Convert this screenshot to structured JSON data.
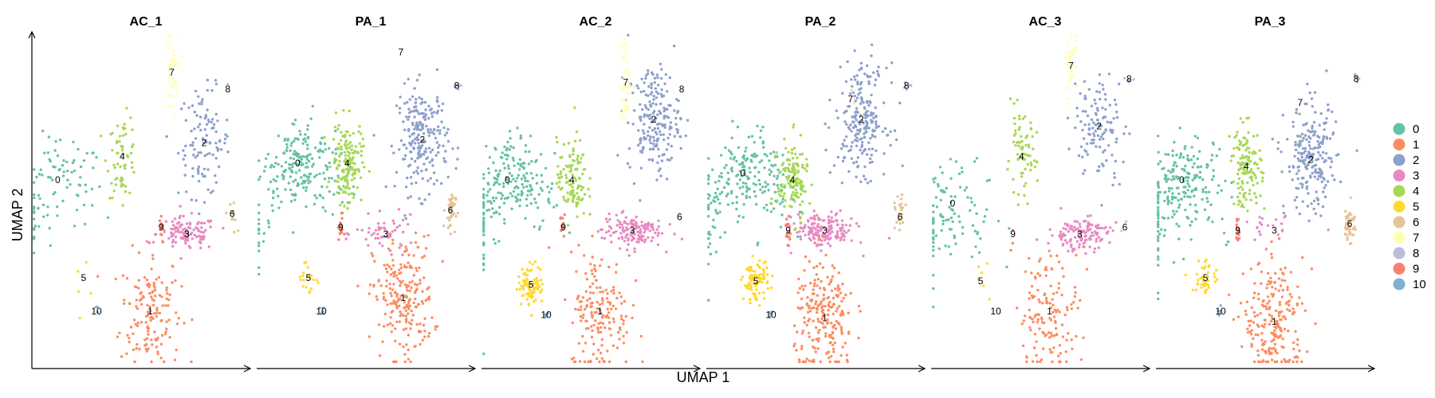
{
  "chart_data": {
    "type": "scatter",
    "x_axis_label": "UMAP 1",
    "y_axis_label": "UMAP 2",
    "panels": [
      "AC_1",
      "PA_1",
      "AC_2",
      "PA_2",
      "AC_3",
      "PA_3"
    ],
    "legend": {
      "placement": "right",
      "entries": [
        {
          "label": "0",
          "color": "#66C2A5"
        },
        {
          "label": "1",
          "color": "#FC8D62"
        },
        {
          "label": "2",
          "color": "#8DA0CB"
        },
        {
          "label": "3",
          "color": "#E78AC3"
        },
        {
          "label": "4",
          "color": "#A6D854"
        },
        {
          "label": "5",
          "color": "#FFD92F"
        },
        {
          "label": "6",
          "color": "#E5C494"
        },
        {
          "label": "7",
          "color": "#FFFFB3"
        },
        {
          "label": "8",
          "color": "#BEBADA"
        },
        {
          "label": "9",
          "color": "#FB8072"
        },
        {
          "label": "10",
          "color": "#80B1D3"
        }
      ]
    },
    "cluster_label_positions_note": "",
    "clusters": {
      "AC_1": [
        {
          "id": "0",
          "label": [
            0.12,
            0.56
          ],
          "n": 90
        },
        {
          "id": "1",
          "label": [
            0.55,
            0.17
          ],
          "n": 150
        },
        {
          "id": "2",
          "label": [
            0.8,
            0.67
          ],
          "n": 110
        },
        {
          "id": "3",
          "label": [
            0.72,
            0.4
          ],
          "n": 110
        },
        {
          "id": "4",
          "label": [
            0.42,
            0.63
          ],
          "n": 60
        },
        {
          "id": "5",
          "label": [
            0.24,
            0.27
          ],
          "n": 5
        },
        {
          "id": "6",
          "label": [
            0.93,
            0.46
          ],
          "n": 10
        },
        {
          "id": "7",
          "label": [
            0.65,
            0.88
          ],
          "n": 40
        },
        {
          "id": "8",
          "label": [
            0.91,
            0.83
          ],
          "n": 1
        },
        {
          "id": "9",
          "label": [
            0.6,
            0.42
          ],
          "n": 10
        },
        {
          "id": "10",
          "label": [
            0.3,
            0.17
          ],
          "n": 3
        }
      ],
      "PA_1": [
        {
          "id": "0",
          "label": [
            0.19,
            0.61
          ],
          "n": 500
        },
        {
          "id": "1",
          "label": [
            0.68,
            0.21
          ],
          "n": 500
        },
        {
          "id": "2",
          "label": [
            0.77,
            0.68
          ],
          "n": 260
        },
        {
          "id": "3",
          "label": [
            0.6,
            0.4
          ],
          "n": 50
        },
        {
          "id": "4",
          "label": [
            0.42,
            0.61
          ],
          "n": 150
        },
        {
          "id": "5",
          "label": [
            0.24,
            0.27
          ],
          "n": 20
        },
        {
          "id": "6",
          "label": [
            0.9,
            0.47
          ],
          "n": 35
        },
        {
          "id": "7",
          "label": [
            0.67,
            0.94
          ],
          "n": 0
        },
        {
          "id": "8",
          "label": [
            0.93,
            0.84
          ],
          "n": 8
        },
        {
          "id": "9",
          "label": [
            0.39,
            0.42
          ],
          "n": 15
        },
        {
          "id": "10",
          "label": [
            0.3,
            0.17
          ],
          "n": 5
        }
      ],
      "AC_2": [
        {
          "id": "0",
          "label": [
            0.12,
            0.56
          ],
          "n": 450
        },
        {
          "id": "1",
          "label": [
            0.55,
            0.17
          ],
          "n": 170
        },
        {
          "id": "2",
          "label": [
            0.8,
            0.74
          ],
          "n": 200
        },
        {
          "id": "3",
          "label": [
            0.7,
            0.41
          ],
          "n": 140
        },
        {
          "id": "4",
          "label": [
            0.42,
            0.56
          ],
          "n": 110
        },
        {
          "id": "5",
          "label": [
            0.23,
            0.25
          ],
          "n": 90
        },
        {
          "id": "6",
          "label": [
            0.92,
            0.45
          ],
          "n": 0
        },
        {
          "id": "7",
          "label": [
            0.67,
            0.85
          ],
          "n": 40
        },
        {
          "id": "8",
          "label": [
            0.93,
            0.83
          ],
          "n": 0
        },
        {
          "id": "9",
          "label": [
            0.38,
            0.42
          ],
          "n": 10
        },
        {
          "id": "10",
          "label": [
            0.3,
            0.16
          ],
          "n": 5
        }
      ],
      "PA_2": [
        {
          "id": "0",
          "label": [
            0.17,
            0.58
          ],
          "n": 550
        },
        {
          "id": "1",
          "label": [
            0.55,
            0.15
          ],
          "n": 550
        },
        {
          "id": "2",
          "label": [
            0.72,
            0.74
          ],
          "n": 330
        },
        {
          "id": "3",
          "label": [
            0.55,
            0.41
          ],
          "n": 160
        },
        {
          "id": "4",
          "label": [
            0.4,
            0.56
          ],
          "n": 140
        },
        {
          "id": "5",
          "label": [
            0.23,
            0.26
          ],
          "n": 90
        },
        {
          "id": "6",
          "label": [
            0.9,
            0.45
          ],
          "n": 25
        },
        {
          "id": "7",
          "label": [
            0.67,
            0.8
          ],
          "n": 2
        },
        {
          "id": "8",
          "label": [
            0.93,
            0.84
          ],
          "n": 6
        },
        {
          "id": "9",
          "label": [
            0.38,
            0.41
          ],
          "n": 15
        },
        {
          "id": "10",
          "label": [
            0.3,
            0.16
          ],
          "n": 4
        }
      ],
      "AC_3": [
        {
          "id": "0",
          "label": [
            0.1,
            0.49
          ],
          "n": 100
        },
        {
          "id": "1",
          "label": [
            0.55,
            0.17
          ],
          "n": 140
        },
        {
          "id": "2",
          "label": [
            0.78,
            0.72
          ],
          "n": 120
        },
        {
          "id": "3",
          "label": [
            0.69,
            0.4
          ],
          "n": 130
        },
        {
          "id": "4",
          "label": [
            0.42,
            0.63
          ],
          "n": 70
        },
        {
          "id": "5",
          "label": [
            0.23,
            0.26
          ],
          "n": 6
        },
        {
          "id": "6",
          "label": [
            0.9,
            0.42
          ],
          "n": 2
        },
        {
          "id": "7",
          "label": [
            0.65,
            0.9
          ],
          "n": 40
        },
        {
          "id": "8",
          "label": [
            0.92,
            0.86
          ],
          "n": 5
        },
        {
          "id": "9",
          "label": [
            0.38,
            0.4
          ],
          "n": 3
        },
        {
          "id": "10",
          "label": [
            0.3,
            0.17
          ],
          "n": 0
        }
      ],
      "PA_3": [
        {
          "id": "0",
          "label": [
            0.12,
            0.56
          ],
          "n": 480
        },
        {
          "id": "1",
          "label": [
            0.55,
            0.14
          ],
          "n": 480
        },
        {
          "id": "2",
          "label": [
            0.72,
            0.62
          ],
          "n": 220
        },
        {
          "id": "3",
          "label": [
            0.55,
            0.41
          ],
          "n": 20
        },
        {
          "id": "4",
          "label": [
            0.42,
            0.6
          ],
          "n": 130
        },
        {
          "id": "5",
          "label": [
            0.23,
            0.27
          ],
          "n": 40
        },
        {
          "id": "6",
          "label": [
            0.9,
            0.43
          ],
          "n": 40
        },
        {
          "id": "7",
          "label": [
            0.67,
            0.79
          ],
          "n": 2
        },
        {
          "id": "8",
          "label": [
            0.93,
            0.86
          ],
          "n": 8
        },
        {
          "id": "9",
          "label": [
            0.38,
            0.41
          ],
          "n": 15
        },
        {
          "id": "10",
          "label": [
            0.3,
            0.17
          ],
          "n": 5
        }
      ]
    }
  }
}
